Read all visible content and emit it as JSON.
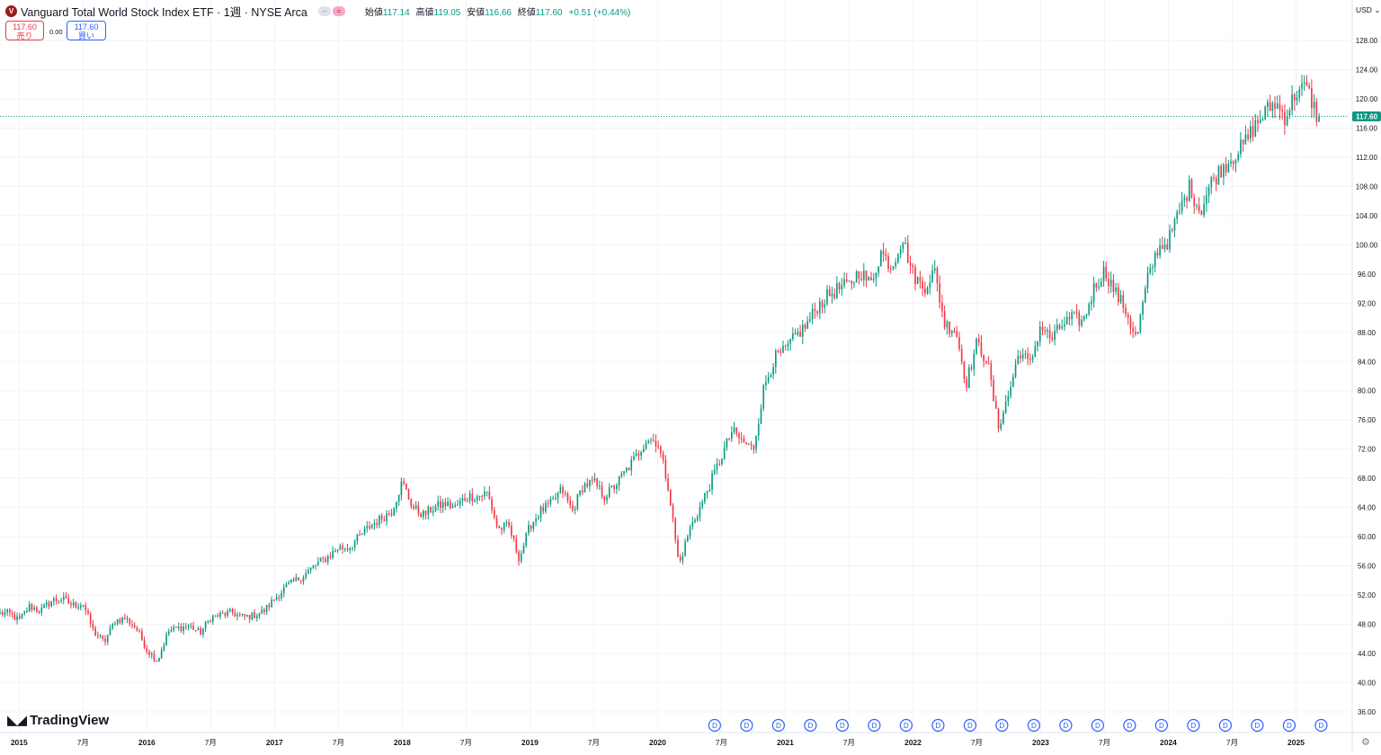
{
  "header": {
    "logo_letter": "V",
    "title": "Vanguard Total World Stock Index ETF · 1週 · NYSE Arca",
    "open_label": "始値",
    "open_value": "117.14",
    "high_label": "高値",
    "high_value": "119.05",
    "low_label": "安値",
    "low_value": "116.66",
    "close_label": "終値",
    "close_value": "117.60",
    "change": "+0.51 (+0.44%)"
  },
  "trade": {
    "sell_price": "117.60",
    "sell_label": "売り",
    "spread": "0.00",
    "buy_price": "117.60",
    "buy_label": "買い"
  },
  "currency": "USD",
  "brand": "TradingView",
  "colors": {
    "up": "#089981",
    "down": "#f23645",
    "grid": "#f0f3fa",
    "dividend": "#2962ff",
    "price_line": "#089981"
  },
  "chart_data": {
    "type": "candlestick",
    "interval": "weekly",
    "ylim": [
      34,
      130
    ],
    "y_ticks": [
      "36.00",
      "40.00",
      "44.00",
      "48.00",
      "52.00",
      "56.00",
      "60.00",
      "64.00",
      "68.00",
      "72.00",
      "76.00",
      "80.00",
      "84.00",
      "88.00",
      "92.00",
      "96.00",
      "100.00",
      "104.00",
      "108.00",
      "112.00",
      "116.00",
      "120.00",
      "124.00",
      "128.00"
    ],
    "x_ticks": [
      "2015",
      "7月",
      "2016",
      "7月",
      "2017",
      "7月",
      "2018",
      "7月",
      "2019",
      "7月",
      "2020",
      "7月",
      "2021",
      "7月",
      "2022",
      "7月",
      "2023",
      "7月",
      "2024",
      "7月",
      "2025"
    ],
    "x_tick_dates": [
      "2015-01",
      "2015-07",
      "2016-01",
      "2016-07",
      "2017-01",
      "2017-07",
      "2018-01",
      "2018-07",
      "2019-01",
      "2019-07",
      "2020-01",
      "2020-07",
      "2021-01",
      "2021-07",
      "2022-01",
      "2022-07",
      "2023-01",
      "2023-07",
      "2024-01",
      "2024-07",
      "2025-01"
    ],
    "last_price": "117.60",
    "last_value": 117.6,
    "dividend_marker": "D",
    "dividend_dates": [
      "2020-06",
      "2020-09",
      "2020-12",
      "2021-03",
      "2021-06",
      "2021-09",
      "2021-12",
      "2022-03",
      "2022-06",
      "2022-09",
      "2022-12",
      "2023-03",
      "2023-06",
      "2023-09",
      "2023-12",
      "2024-03",
      "2024-06",
      "2024-09",
      "2024-12",
      "2025-03"
    ],
    "monthly_close": [
      {
        "date": "2014-12",
        "close": 49.5
      },
      {
        "date": "2015-01",
        "close": 48.5
      },
      {
        "date": "2015-02",
        "close": 50.5
      },
      {
        "date": "2015-03",
        "close": 49.8
      },
      {
        "date": "2015-04",
        "close": 51.2
      },
      {
        "date": "2015-05",
        "close": 51.5
      },
      {
        "date": "2015-06",
        "close": 50.6
      },
      {
        "date": "2015-07",
        "close": 50.8
      },
      {
        "date": "2015-08",
        "close": 47.0
      },
      {
        "date": "2015-09",
        "close": 45.5
      },
      {
        "date": "2015-10",
        "close": 48.5
      },
      {
        "date": "2015-11",
        "close": 48.8
      },
      {
        "date": "2015-12",
        "close": 47.5
      },
      {
        "date": "2016-01",
        "close": 44.5
      },
      {
        "date": "2016-02",
        "close": 43.0
      },
      {
        "date": "2016-03",
        "close": 47.0
      },
      {
        "date": "2016-04",
        "close": 47.5
      },
      {
        "date": "2016-05",
        "close": 47.8
      },
      {
        "date": "2016-06",
        "close": 46.8
      },
      {
        "date": "2016-07",
        "close": 48.9
      },
      {
        "date": "2016-08",
        "close": 49.3
      },
      {
        "date": "2016-09",
        "close": 49.6
      },
      {
        "date": "2016-10",
        "close": 49.0
      },
      {
        "date": "2016-11",
        "close": 49.2
      },
      {
        "date": "2016-12",
        "close": 49.8
      },
      {
        "date": "2017-01",
        "close": 51.5
      },
      {
        "date": "2017-02",
        "close": 53.0
      },
      {
        "date": "2017-03",
        "close": 54.0
      },
      {
        "date": "2017-04",
        "close": 55.0
      },
      {
        "date": "2017-05",
        "close": 56.3
      },
      {
        "date": "2017-06",
        "close": 57.2
      },
      {
        "date": "2017-07",
        "close": 58.5
      },
      {
        "date": "2017-08",
        "close": 58.5
      },
      {
        "date": "2017-09",
        "close": 60.0
      },
      {
        "date": "2017-10",
        "close": 61.5
      },
      {
        "date": "2017-11",
        "close": 62.5
      },
      {
        "date": "2017-12",
        "close": 63.5
      },
      {
        "date": "2018-01",
        "close": 67.5
      },
      {
        "date": "2018-02",
        "close": 64.0
      },
      {
        "date": "2018-03",
        "close": 63.0
      },
      {
        "date": "2018-04",
        "close": 64.0
      },
      {
        "date": "2018-05",
        "close": 64.5
      },
      {
        "date": "2018-06",
        "close": 64.0
      },
      {
        "date": "2018-07",
        "close": 65.5
      },
      {
        "date": "2018-08",
        "close": 65.5
      },
      {
        "date": "2018-09",
        "close": 66.0
      },
      {
        "date": "2018-10",
        "close": 61.0
      },
      {
        "date": "2018-11",
        "close": 61.5
      },
      {
        "date": "2018-12",
        "close": 57.0
      },
      {
        "date": "2019-01",
        "close": 61.5
      },
      {
        "date": "2019-02",
        "close": 63.5
      },
      {
        "date": "2019-03",
        "close": 64.5
      },
      {
        "date": "2019-04",
        "close": 66.5
      },
      {
        "date": "2019-05",
        "close": 63.5
      },
      {
        "date": "2019-06",
        "close": 67.0
      },
      {
        "date": "2019-07",
        "close": 67.5
      },
      {
        "date": "2019-08",
        "close": 65.5
      },
      {
        "date": "2019-09",
        "close": 67.0
      },
      {
        "date": "2019-10",
        "close": 69.0
      },
      {
        "date": "2019-11",
        "close": 71.0
      },
      {
        "date": "2019-12",
        "close": 73.5
      },
      {
        "date": "2020-01",
        "close": 73.0
      },
      {
        "date": "2020-02",
        "close": 67.0
      },
      {
        "date": "2020-03",
        "close": 56.0
      },
      {
        "date": "2020-04",
        "close": 61.0
      },
      {
        "date": "2020-05",
        "close": 64.0
      },
      {
        "date": "2020-06",
        "close": 67.5
      },
      {
        "date": "2020-07",
        "close": 71.0
      },
      {
        "date": "2020-08",
        "close": 74.5
      },
      {
        "date": "2020-09",
        "close": 73.0
      },
      {
        "date": "2020-10",
        "close": 72.0
      },
      {
        "date": "2020-11",
        "close": 80.5
      },
      {
        "date": "2020-12",
        "close": 84.5
      },
      {
        "date": "2021-01",
        "close": 85.5
      },
      {
        "date": "2021-02",
        "close": 87.5
      },
      {
        "date": "2021-03",
        "close": 89.0
      },
      {
        "date": "2021-04",
        "close": 91.5
      },
      {
        "date": "2021-05",
        "close": 93.0
      },
      {
        "date": "2021-06",
        "close": 94.0
      },
      {
        "date": "2021-07",
        "close": 94.5
      },
      {
        "date": "2021-08",
        "close": 96.5
      },
      {
        "date": "2021-09",
        "close": 94.5
      },
      {
        "date": "2021-10",
        "close": 99.0
      },
      {
        "date": "2021-11",
        "close": 97.0
      },
      {
        "date": "2021-12",
        "close": 101.0
      },
      {
        "date": "2022-01",
        "close": 96.0
      },
      {
        "date": "2022-02",
        "close": 94.0
      },
      {
        "date": "2022-03",
        "close": 96.5
      },
      {
        "date": "2022-04",
        "close": 89.0
      },
      {
        "date": "2022-05",
        "close": 88.5
      },
      {
        "date": "2022-06",
        "close": 81.0
      },
      {
        "date": "2022-07",
        "close": 86.5
      },
      {
        "date": "2022-08",
        "close": 84.0
      },
      {
        "date": "2022-09",
        "close": 75.0
      },
      {
        "date": "2022-10",
        "close": 79.5
      },
      {
        "date": "2022-11",
        "close": 85.5
      },
      {
        "date": "2022-12",
        "close": 83.5
      },
      {
        "date": "2023-01",
        "close": 89.0
      },
      {
        "date": "2023-02",
        "close": 87.0
      },
      {
        "date": "2023-03",
        "close": 89.0
      },
      {
        "date": "2023-04",
        "close": 90.0
      },
      {
        "date": "2023-05",
        "close": 89.5
      },
      {
        "date": "2023-06",
        "close": 94.0
      },
      {
        "date": "2023-07",
        "close": 96.5
      },
      {
        "date": "2023-08",
        "close": 93.5
      },
      {
        "date": "2023-09",
        "close": 91.0
      },
      {
        "date": "2023-10",
        "close": 87.0
      },
      {
        "date": "2023-11",
        "close": 95.0
      },
      {
        "date": "2023-12",
        "close": 99.5
      },
      {
        "date": "2024-01",
        "close": 100.5
      },
      {
        "date": "2024-02",
        "close": 104.5
      },
      {
        "date": "2024-03",
        "close": 108.0
      },
      {
        "date": "2024-04",
        "close": 104.5
      },
      {
        "date": "2024-05",
        "close": 108.5
      },
      {
        "date": "2024-06",
        "close": 110.5
      },
      {
        "date": "2024-07",
        "close": 112.0
      },
      {
        "date": "2024-08",
        "close": 113.5
      },
      {
        "date": "2024-09",
        "close": 116.0
      },
      {
        "date": "2024-10",
        "close": 118.0
      },
      {
        "date": "2024-11",
        "close": 119.5
      },
      {
        "date": "2024-12",
        "close": 117.5
      },
      {
        "date": "2025-01",
        "close": 121.0
      },
      {
        "date": "2025-02",
        "close": 121.5
      },
      {
        "date": "2025-03",
        "close": 117.6
      }
    ]
  }
}
